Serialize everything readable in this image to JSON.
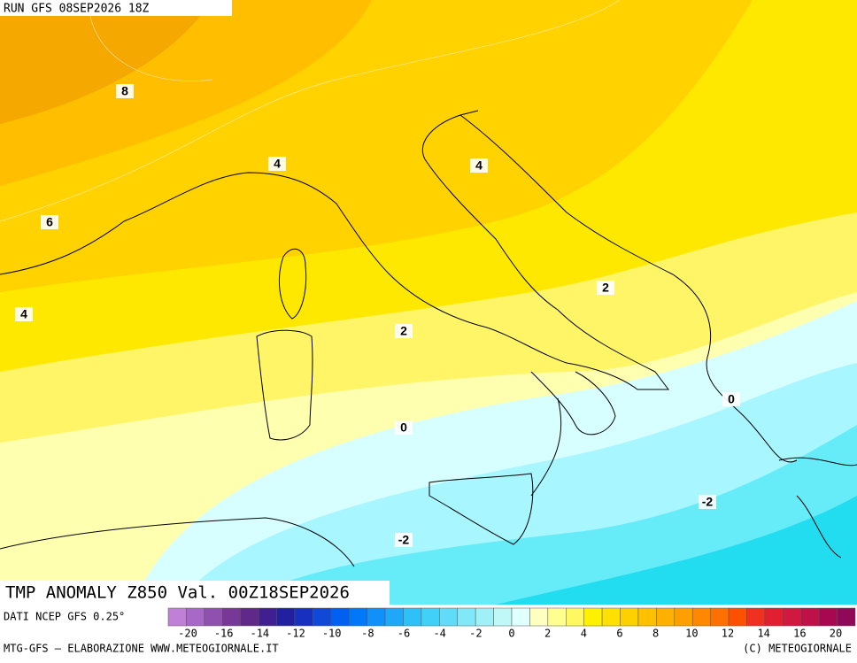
{
  "header": {
    "run": "RUN GFS 08SEP2026 18Z"
  },
  "map_labels": [
    {
      "value": 8
    },
    {
      "value": 6
    },
    {
      "value": 4
    },
    {
      "value": 4
    },
    {
      "value": 4
    },
    {
      "value": 2
    },
    {
      "value": 2
    },
    {
      "value": 0
    },
    {
      "value": 0
    },
    {
      "value": -2
    },
    {
      "value": -2
    }
  ],
  "title": "TMP ANOMALY Z850 Val. 00Z18SEP2026",
  "source": "DATI NCEP GFS 0.25°",
  "colorbar": {
    "labels": [
      -20,
      -16,
      -14,
      -12,
      -10,
      -8,
      -6,
      -4,
      -2,
      0,
      2,
      4,
      6,
      8,
      10,
      12,
      14,
      16,
      20
    ]
  },
  "footer": {
    "left": "MTG-GFS — ELABORAZIONE WWW.METEOGIORNALE.IT",
    "right": "(C) METEOGIORNALE"
  }
}
